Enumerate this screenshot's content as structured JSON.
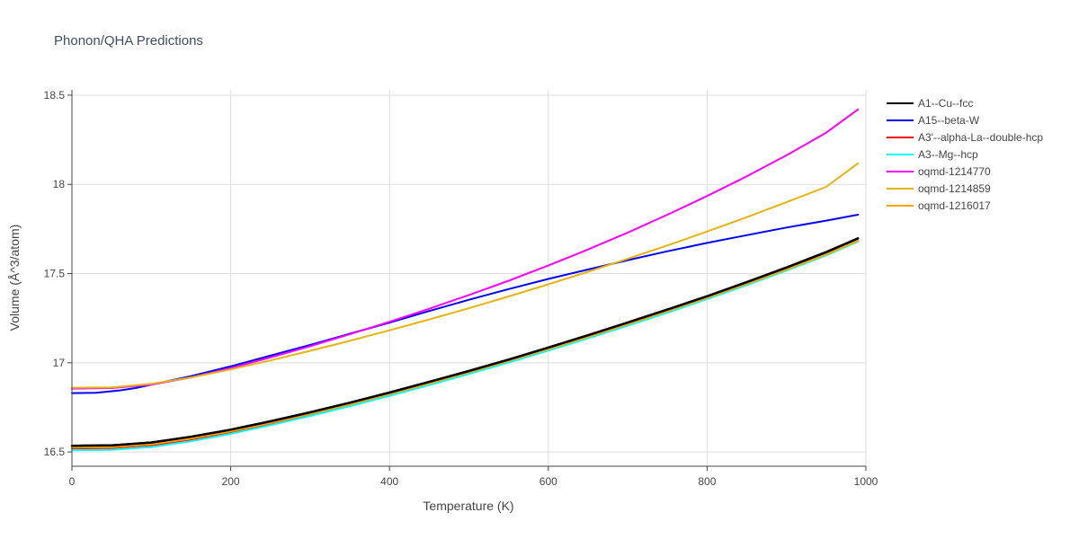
{
  "chart_data": {
    "type": "line",
    "title": "Phonon/QHA Predictions",
    "xlabel": "Temperature (K)",
    "ylabel": "Volume (Å^3/atom)",
    "xlim": [
      0,
      1000
    ],
    "ylim": [
      16.42,
      18.53
    ],
    "xticks": [
      0,
      200,
      400,
      600,
      800,
      1000
    ],
    "xtick_labels": [
      "0",
      "200",
      "400",
      "600",
      "800",
      "1000"
    ],
    "yticks": [
      16.5,
      17,
      17.5,
      18,
      18.5
    ],
    "ytick_labels": [
      "16.5",
      "17",
      "17.5",
      "18",
      "18.5"
    ],
    "grid": true,
    "legend_position": "top-right",
    "series": [
      {
        "name": "A1--Cu--fcc",
        "color": "#000000",
        "x": [
          0,
          50,
          100,
          150,
          200,
          250,
          300,
          350,
          400,
          450,
          500,
          550,
          600,
          650,
          700,
          750,
          800,
          850,
          900,
          950,
          990
        ],
        "y": [
          16.535,
          16.537,
          16.553,
          16.585,
          16.625,
          16.672,
          16.722,
          16.776,
          16.833,
          16.893,
          16.954,
          17.018,
          17.085,
          17.154,
          17.225,
          17.298,
          17.373,
          17.452,
          17.534,
          17.62,
          17.697
        ]
      },
      {
        "name": "A15--beta-W",
        "color": "#0000ff",
        "x": [
          0,
          30,
          60,
          80,
          100,
          150,
          200,
          250,
          300,
          350,
          400,
          450,
          500,
          550,
          600,
          650,
          700,
          750,
          800,
          850,
          900,
          950,
          990
        ],
        "y": [
          16.83,
          16.832,
          16.845,
          16.858,
          16.878,
          16.925,
          16.98,
          17.04,
          17.1,
          17.163,
          17.225,
          17.29,
          17.353,
          17.413,
          17.47,
          17.523,
          17.575,
          17.625,
          17.672,
          17.715,
          17.758,
          17.797,
          17.83
        ]
      },
      {
        "name": "A3'--alpha-La--double-hcp",
        "color": "#ff0000",
        "x": [
          0,
          50,
          100,
          150,
          200,
          250,
          300,
          350,
          400,
          450,
          500,
          550,
          600,
          650,
          700,
          750,
          800,
          850,
          900,
          950,
          990
        ],
        "y": [
          16.52,
          16.522,
          16.538,
          16.57,
          16.61,
          16.657,
          16.708,
          16.762,
          16.82,
          16.879,
          16.941,
          17.005,
          17.071,
          17.14,
          17.211,
          17.284,
          17.36,
          17.438,
          17.519,
          17.604,
          17.681
        ]
      },
      {
        "name": "A3--Mg--hcp",
        "color": "#00ffff",
        "x": [
          0,
          50,
          100,
          150,
          200,
          250,
          300,
          350,
          400,
          450,
          500,
          550,
          600,
          650,
          700,
          750,
          800,
          850,
          900,
          950,
          990
        ],
        "y": [
          16.51,
          16.512,
          16.528,
          16.56,
          16.602,
          16.65,
          16.702,
          16.757,
          16.815,
          16.875,
          16.937,
          17.001,
          17.068,
          17.137,
          17.208,
          17.281,
          17.357,
          17.435,
          17.517,
          17.602,
          17.68
        ]
      },
      {
        "name": "oqmd-1214770",
        "color": "#ff00ff",
        "x": [
          0,
          50,
          100,
          150,
          200,
          250,
          300,
          350,
          400,
          450,
          500,
          550,
          600,
          650,
          700,
          750,
          800,
          850,
          900,
          950,
          990
        ],
        "y": [
          16.855,
          16.858,
          16.878,
          16.918,
          16.97,
          17.03,
          17.093,
          17.16,
          17.23,
          17.303,
          17.38,
          17.46,
          17.545,
          17.635,
          17.73,
          17.83,
          17.935,
          18.045,
          18.163,
          18.29,
          18.42
        ]
      },
      {
        "name": "oqmd-1214859",
        "color": "#e6b40f",
        "x": [
          0,
          50,
          100,
          150,
          200,
          250,
          300,
          350,
          400,
          450,
          500,
          550,
          600,
          650,
          700,
          750,
          800,
          850,
          900,
          950,
          990
        ],
        "y": [
          16.86,
          16.862,
          16.882,
          16.918,
          16.963,
          17.013,
          17.067,
          17.123,
          17.182,
          17.243,
          17.306,
          17.372,
          17.44,
          17.51,
          17.583,
          17.658,
          17.736,
          17.816,
          17.9,
          17.986,
          18.118
        ]
      },
      {
        "name": "oqmd-1216017",
        "color": "#ffa500",
        "x": [
          0,
          50,
          100,
          150,
          200,
          250,
          300,
          350,
          400,
          450,
          500,
          550,
          600,
          650,
          700,
          750,
          800,
          850,
          900,
          950,
          990
        ],
        "y": [
          16.525,
          16.527,
          16.543,
          16.575,
          16.615,
          16.662,
          16.713,
          16.767,
          16.825,
          16.884,
          16.946,
          17.01,
          17.076,
          17.145,
          17.216,
          17.289,
          17.364,
          17.442,
          17.523,
          17.607,
          17.684
        ]
      }
    ]
  }
}
